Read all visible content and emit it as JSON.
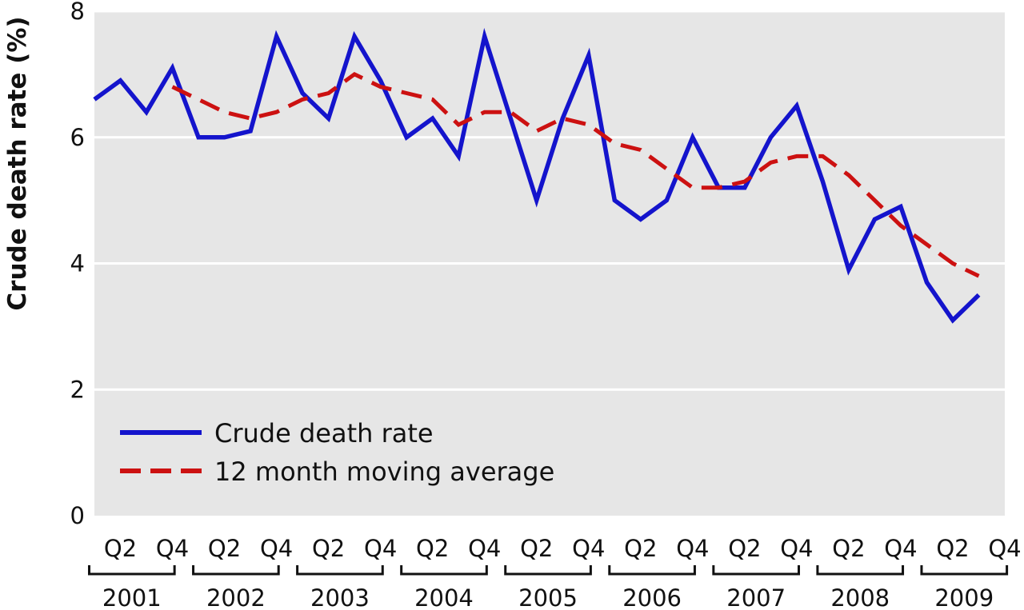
{
  "chart_data": {
    "type": "line",
    "title": "",
    "xlabel": "",
    "ylabel": "Crude death rate (%)",
    "ylim": [
      0,
      8
    ],
    "yticks": [
      "0",
      "2",
      "4",
      "6",
      "8"
    ],
    "years": [
      "2001",
      "2002",
      "2003",
      "2004",
      "2005",
      "2006",
      "2007",
      "2008",
      "2009"
    ],
    "quarter_labels": [
      "Q2",
      "Q4"
    ],
    "x_range": [
      2001.0,
      2009.75
    ],
    "grid": true,
    "legend_placement": "bottom-left",
    "series": [
      {
        "name": "Crude death rate",
        "style": "solid",
        "color": "#1414cc",
        "x": [
          "2001 Q1",
          "2001 Q2",
          "2001 Q3",
          "2001 Q4",
          "2002 Q1",
          "2002 Q2",
          "2002 Q3",
          "2002 Q4",
          "2003 Q1",
          "2003 Q2",
          "2003 Q3",
          "2003 Q4",
          "2004 Q1",
          "2004 Q2",
          "2004 Q3",
          "2004 Q4",
          "2005 Q1",
          "2005 Q2",
          "2005 Q3",
          "2005 Q4",
          "2006 Q1",
          "2006 Q2",
          "2006 Q3",
          "2006 Q4",
          "2007 Q1",
          "2007 Q2",
          "2007 Q3",
          "2007 Q4",
          "2008 Q1",
          "2008 Q2",
          "2008 Q3",
          "2008 Q4",
          "2009 Q1",
          "2009 Q2",
          "2009 Q3",
          "2009 Q4"
        ],
        "values": [
          6.6,
          6.9,
          6.4,
          7.1,
          6.0,
          6.0,
          6.1,
          7.6,
          6.7,
          6.3,
          7.6,
          6.9,
          6.0,
          6.3,
          5.7,
          7.6,
          6.3,
          5.0,
          6.3,
          7.3,
          5.0,
          4.7,
          5.0,
          6.0,
          5.2,
          5.2,
          6.0,
          6.5,
          5.3,
          3.9,
          4.7,
          4.9,
          3.7,
          3.1,
          3.5,
          null
        ]
      },
      {
        "name": "12 month moving average",
        "style": "dashed",
        "color": "#cc1111",
        "x": [
          "2001 Q4",
          "2002 Q1",
          "2002 Q2",
          "2002 Q3",
          "2002 Q4",
          "2003 Q1",
          "2003 Q2",
          "2003 Q3",
          "2003 Q4",
          "2004 Q1",
          "2004 Q2",
          "2004 Q3",
          "2004 Q4",
          "2005 Q1",
          "2005 Q2",
          "2005 Q3",
          "2005 Q4",
          "2006 Q1",
          "2006 Q2",
          "2006 Q3",
          "2006 Q4",
          "2007 Q1",
          "2007 Q2",
          "2007 Q3",
          "2007 Q4",
          "2008 Q1",
          "2008 Q2",
          "2008 Q3",
          "2008 Q4",
          "2009 Q1",
          "2009 Q2",
          "2009 Q3"
        ],
        "values": [
          6.8,
          6.6,
          6.4,
          6.3,
          6.4,
          6.6,
          6.7,
          7.0,
          6.8,
          6.7,
          6.6,
          6.2,
          6.4,
          6.4,
          6.1,
          6.3,
          6.2,
          5.9,
          5.8,
          5.5,
          5.2,
          5.2,
          5.3,
          5.6,
          5.7,
          5.7,
          5.4,
          5.0,
          4.6,
          4.3,
          4.0,
          3.8
        ]
      }
    ]
  }
}
